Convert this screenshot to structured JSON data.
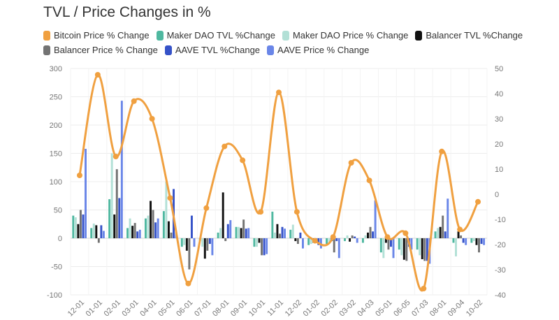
{
  "chart_data": {
    "type": "bar",
    "title": "TVL / Price Changes in %",
    "categories": [
      "12-01",
      "01-01",
      "02-01",
      "03-01",
      "04-01",
      "05-01",
      "06-01",
      "07-01",
      "08-01",
      "09-01",
      "10-01",
      "11-01",
      "12-02",
      "01-02",
      "02-02",
      "03-02",
      "04-03",
      "05-01",
      "06-05",
      "07-03",
      "08-01",
      "09-04",
      "10-02"
    ],
    "y_left": {
      "range": [
        -100,
        300
      ],
      "ticks": [
        300,
        250,
        200,
        150,
        100,
        50,
        0,
        -50,
        -100
      ]
    },
    "y_right": {
      "range": [
        -40,
        50
      ],
      "ticks": [
        50,
        40,
        30,
        20,
        10,
        0,
        -10,
        -20,
        -30,
        -40
      ]
    },
    "line_series": {
      "name": "Bitcoin Price % Change",
      "axis": "right",
      "color": "#f0a040",
      "values": [
        7.5,
        47.5,
        15,
        37,
        30,
        -1.5,
        -35.5,
        -5.5,
        19,
        13.5,
        -7,
        40.5,
        -7,
        -18.5,
        -17,
        12.5,
        5.5,
        -17,
        -15.5,
        -37.5,
        17,
        -14,
        -3
      ]
    },
    "bar_series": [
      {
        "name": "Maker DAO TVL %Change",
        "axis": "left",
        "color": "#4fb8a0",
        "values": [
          40,
          18,
          69,
          18,
          35,
          48,
          -15,
          -5,
          10,
          20,
          -15,
          47,
          15,
          -12,
          -10,
          -5,
          -8,
          -25,
          -20,
          -20,
          12,
          -8,
          -8
        ]
      },
      {
        "name": "Maker DAO Price % Change",
        "axis": "left",
        "color": "#b2e0d6",
        "values": [
          37,
          26,
          150,
          35,
          40,
          100,
          -12,
          -15,
          18,
          20,
          -15,
          10,
          24,
          -10,
          -10,
          5,
          5,
          -35,
          -30,
          -30,
          18,
          -32,
          -5
        ]
      },
      {
        "name": "Balancer TVL %Change",
        "axis": "left",
        "color": "#111111",
        "values": [
          25,
          23,
          42,
          22,
          66,
          30,
          -22,
          -36,
          81,
          18,
          -8,
          25,
          -5,
          -8,
          -5,
          -6,
          10,
          -8,
          -38,
          -37,
          20,
          12,
          -12
        ]
      },
      {
        "name": "Balancer Price % Change",
        "axis": "left",
        "color": "#737373",
        "values": [
          50,
          -8,
          122,
          27,
          50,
          10,
          -55,
          -22,
          -5,
          33,
          -30,
          8,
          -10,
          -8,
          -25,
          5,
          20,
          -20,
          -40,
          -40,
          40,
          5,
          -25
        ]
      },
      {
        "name": "AAVE TVL %Change",
        "axis": "left",
        "color": "#3552c8",
        "values": [
          42,
          23,
          71,
          12,
          28,
          87,
          40,
          -10,
          25,
          17,
          -30,
          20,
          10,
          -12,
          -5,
          3,
          12,
          -15,
          -15,
          -40,
          12,
          -8,
          -10
        ]
      },
      {
        "name": "AAVE Price % Change",
        "axis": "left",
        "color": "#6a86e8",
        "values": [
          158,
          13,
          243,
          15,
          35,
          12,
          -15,
          -30,
          32,
          18,
          -28,
          17,
          -18,
          -18,
          -35,
          -8,
          67,
          -35,
          -20,
          -45,
          70,
          -12,
          -12
        ]
      }
    ]
  }
}
